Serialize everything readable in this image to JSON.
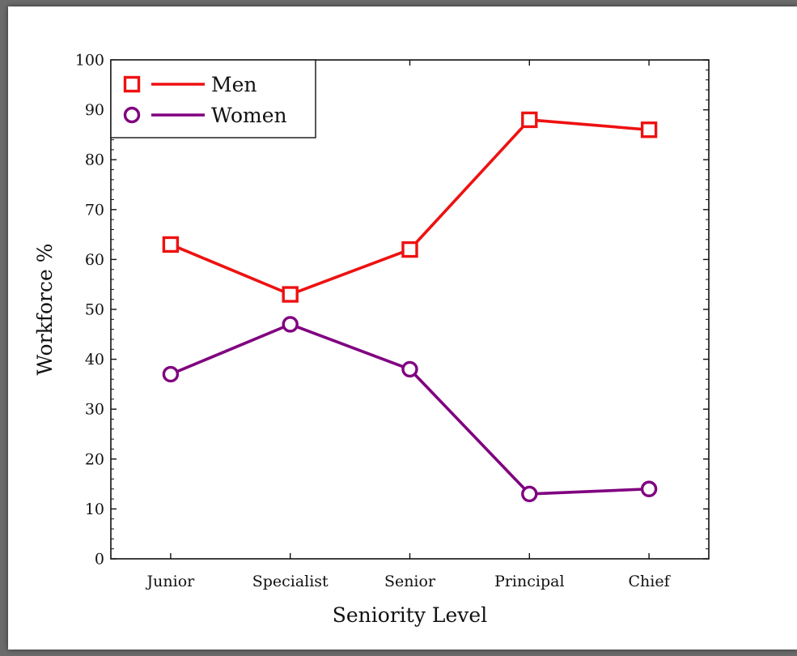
{
  "chart_data": {
    "type": "line",
    "categories": [
      "Junior",
      "Specialist",
      "Senior",
      "Principal",
      "Chief"
    ],
    "xlabel": "Seniority Level",
    "ylabel": "Workforce %",
    "ylim": [
      0,
      100
    ],
    "yticks": [
      "0",
      "10",
      "20",
      "30",
      "40",
      "50",
      "60",
      "70",
      "80",
      "90",
      "100"
    ],
    "grid": false,
    "legend_position": "top-left",
    "series": [
      {
        "name": "Men",
        "values": [
          63,
          53,
          62,
          88,
          86
        ],
        "color": "#ee1111",
        "marker": "square"
      },
      {
        "name": "Women",
        "values": [
          37,
          47,
          38,
          13,
          14
        ],
        "color": "#800080",
        "marker": "circle"
      }
    ]
  }
}
